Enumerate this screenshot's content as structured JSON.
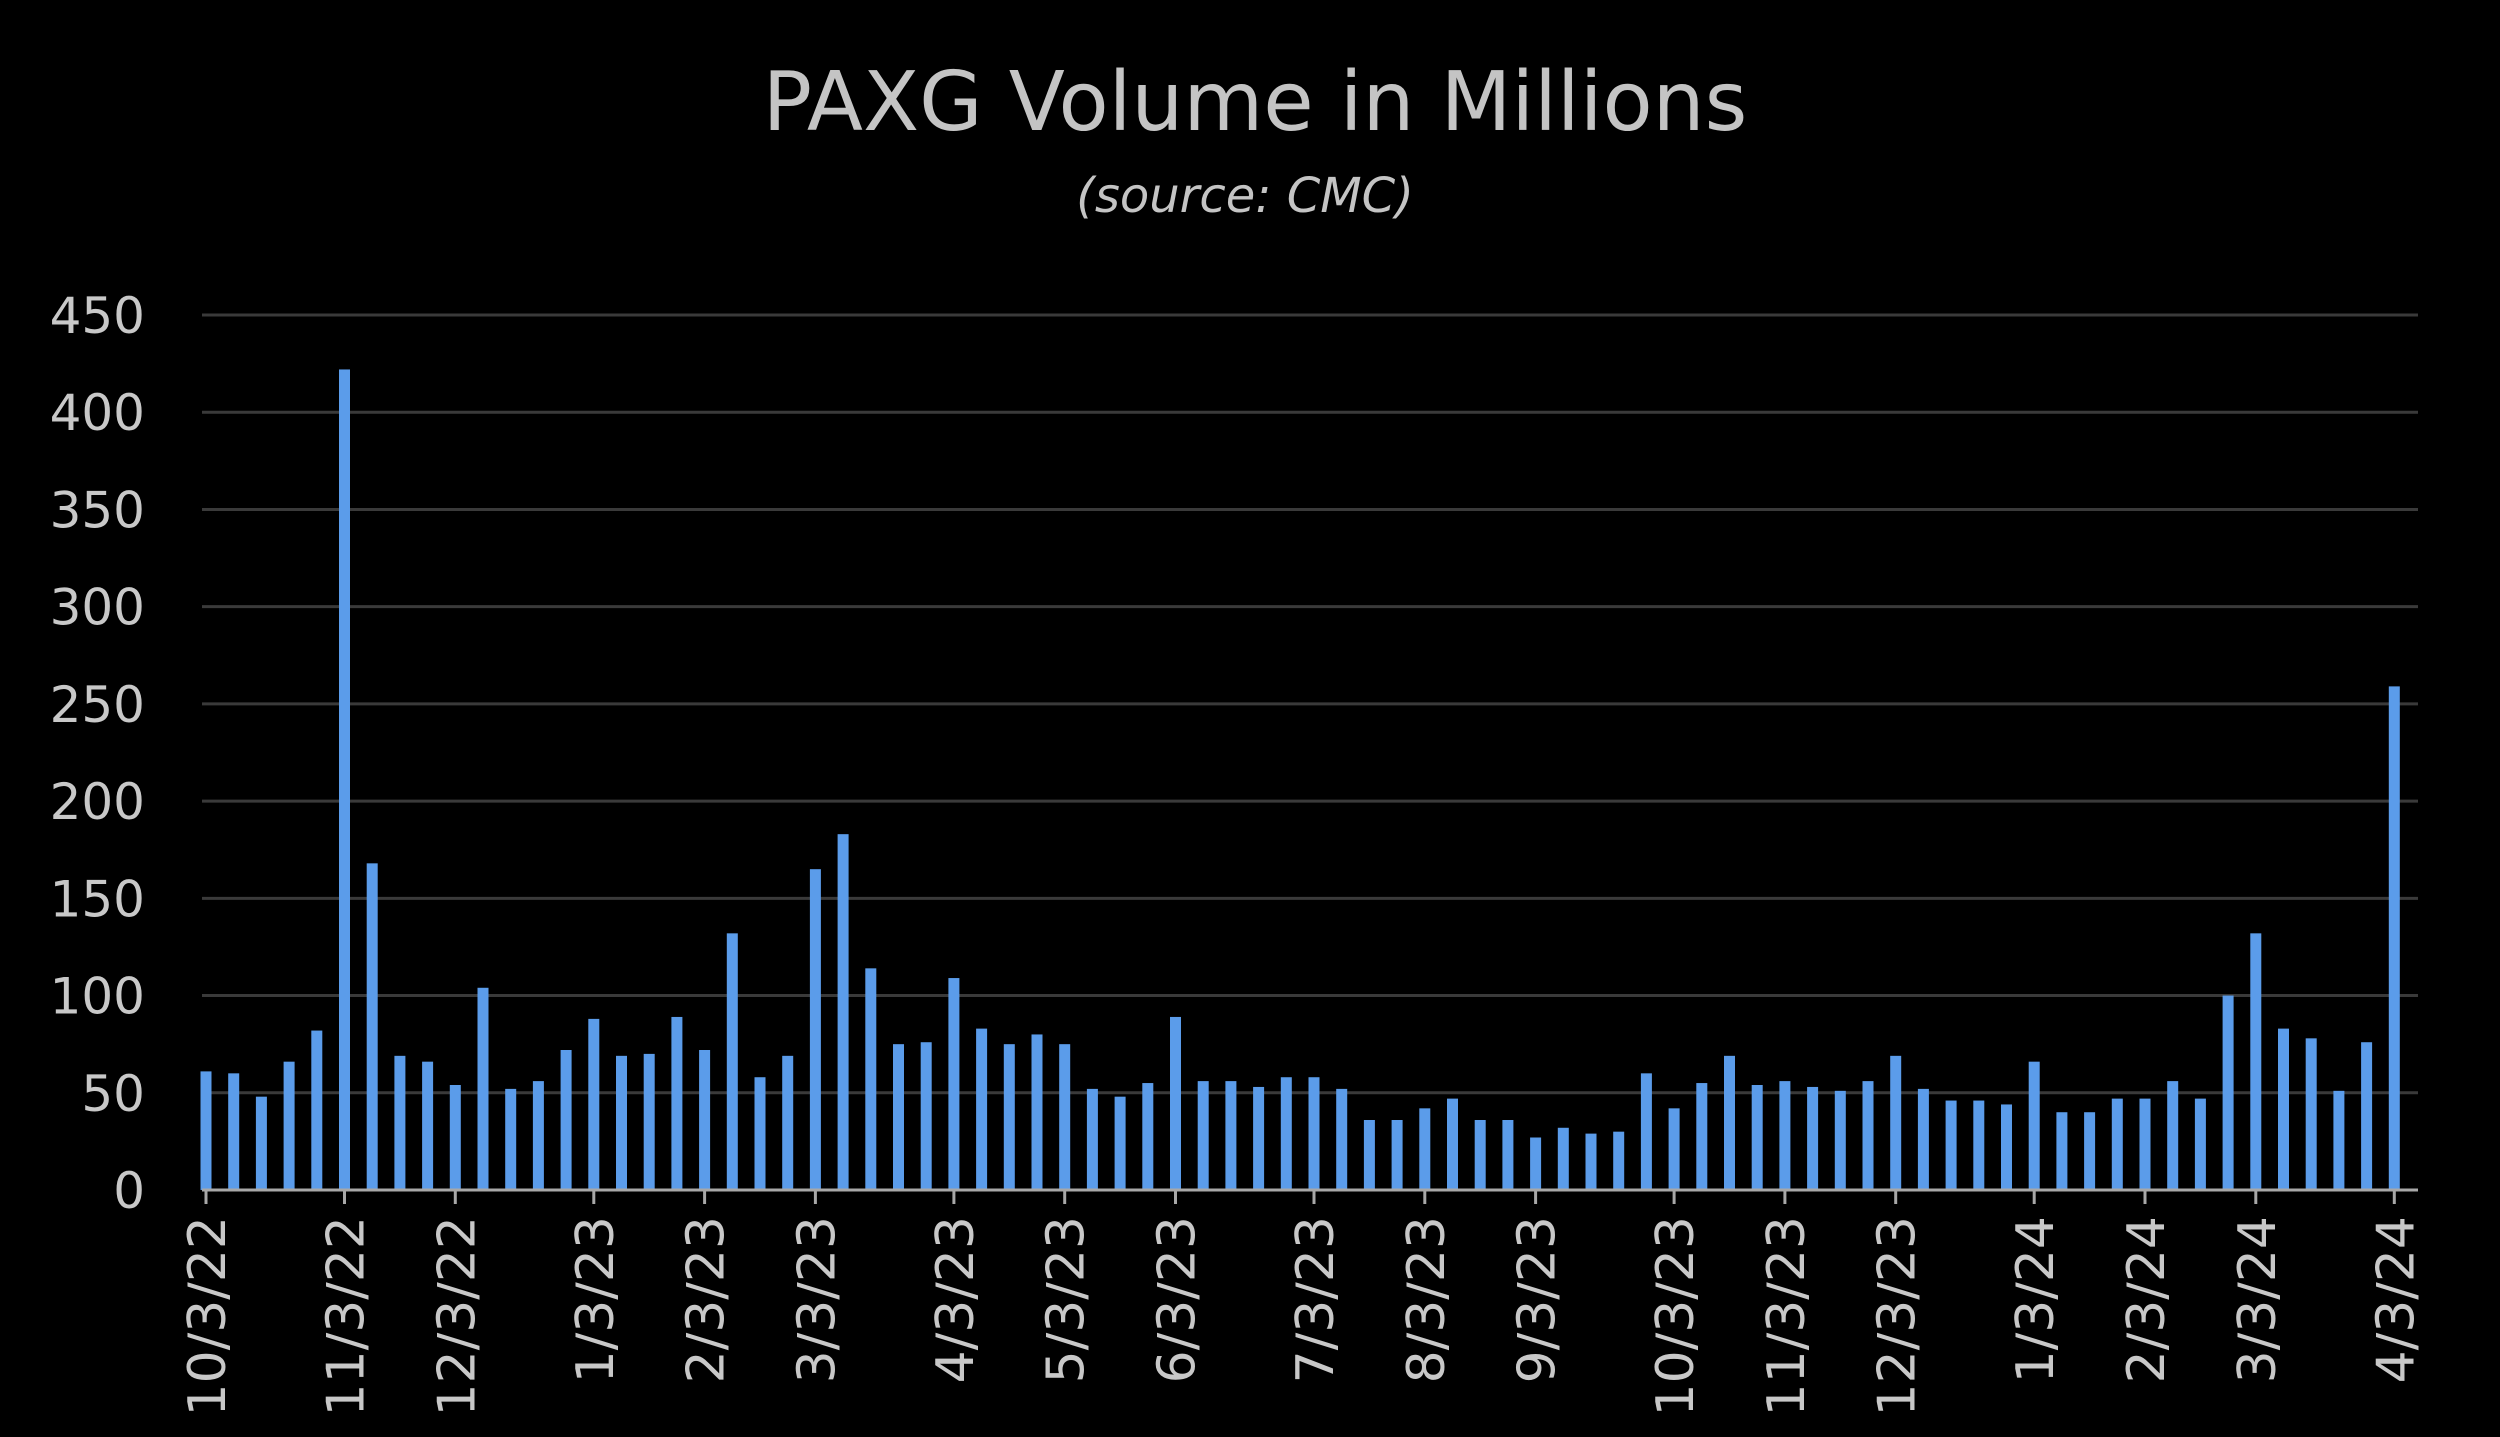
{
  "chart_data": {
    "type": "bar",
    "title": "PAXG Volume in Millions",
    "subtitle": "(source: CMC)",
    "xlabel": "",
    "ylabel": "",
    "ylim": [
      0,
      450
    ],
    "yticks": [
      0,
      50,
      100,
      150,
      200,
      250,
      300,
      350,
      400,
      450
    ],
    "grid": true,
    "legend": "none",
    "x_tick_labels": [
      "10/3/22",
      "11/3/22",
      "12/3/22",
      "1/3/23",
      "2/3/23",
      "3/3/23",
      "4/3/23",
      "5/3/23",
      "6/3/23",
      "7/3/23",
      "8/3/23",
      "9/3/23",
      "10/3/23",
      "11/3/23",
      "12/3/23",
      "1/3/24",
      "2/3/24",
      "3/3/24",
      "4/3/24"
    ],
    "x_tick_bar_index": [
      0,
      5,
      9,
      14,
      18,
      22,
      27,
      31,
      35,
      40,
      44,
      48,
      53,
      57,
      61,
      66,
      70,
      74,
      79
    ],
    "series": [
      {
        "values": [
          61,
          60,
          48,
          66,
          82,
          422,
          168,
          69,
          66,
          54,
          104,
          52,
          56,
          72,
          88,
          69,
          70,
          89,
          72,
          132,
          58,
          69,
          165,
          183,
          114,
          75,
          76,
          109,
          83,
          75,
          80,
          75,
          52,
          48,
          55,
          89,
          56,
          56,
          53,
          58,
          58,
          52,
          36,
          36,
          42,
          47,
          36,
          36,
          27,
          32,
          29,
          30,
          60,
          42,
          55,
          69,
          54,
          56,
          53,
          51,
          56,
          69,
          52,
          46,
          46,
          44,
          66,
          40,
          40,
          47,
          47,
          56,
          47,
          100,
          132,
          83,
          78,
          51,
          76,
          259
        ]
      }
    ]
  },
  "colors": {
    "background": "#000000",
    "bar": "#5b9cea",
    "grid": "#3a3a3a",
    "axis": "#a8a8a8",
    "text": "#c6c6c6"
  }
}
